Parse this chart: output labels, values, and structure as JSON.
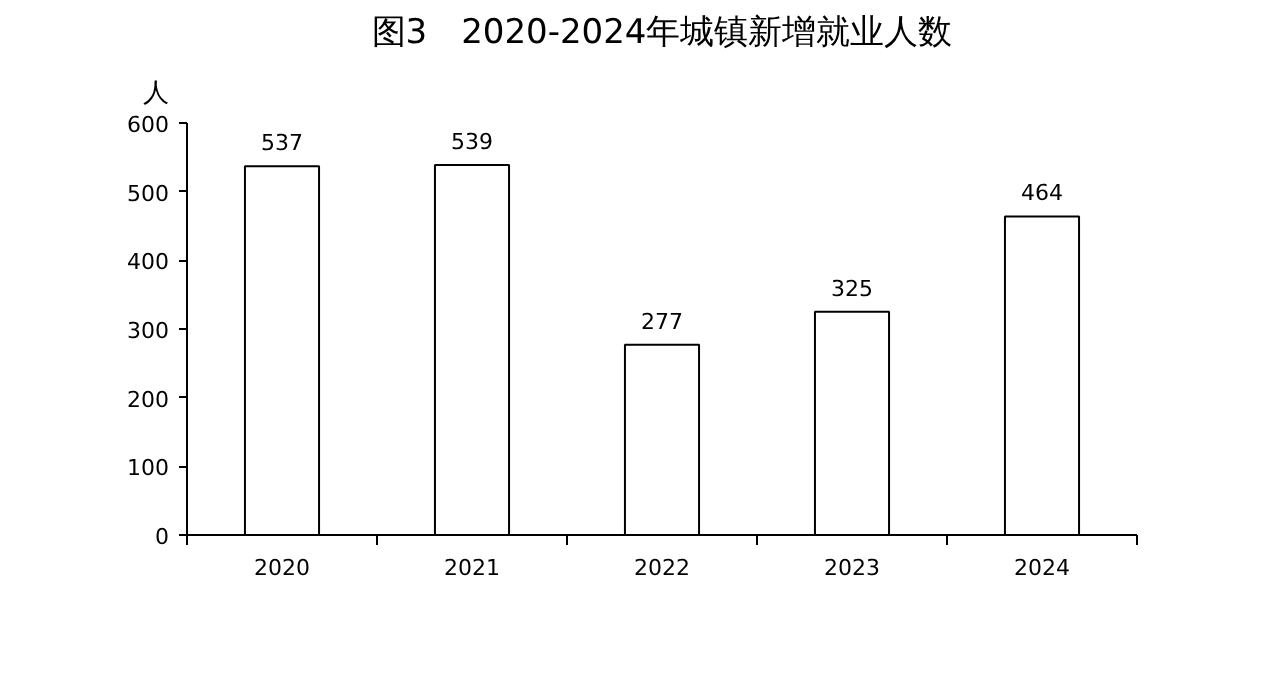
{
  "chart_data": {
    "type": "bar",
    "title": "图3　2020-2024年城镇新增就业人数",
    "ylabel": "人",
    "categories": [
      "2020",
      "2021",
      "2022",
      "2023",
      "2024"
    ],
    "values": [
      537,
      539,
      277,
      325,
      464
    ],
    "color": "#ffffff",
    "ylim": [
      0,
      600
    ],
    "yticks": [
      0,
      100,
      200,
      300,
      400,
      500,
      600
    ],
    "data_labels": true,
    "grid": false
  }
}
